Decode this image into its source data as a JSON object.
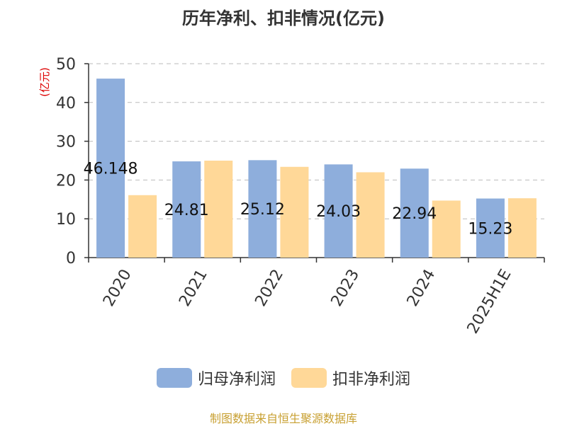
{
  "chart_data": {
    "type": "bar",
    "title": "历年净利、扣非情况(亿元)",
    "ylabel": "(亿元)",
    "categories": [
      "2020",
      "2021",
      "2022",
      "2023",
      "2024",
      "2025H1E"
    ],
    "ylim": [
      0,
      50
    ],
    "yticks": [
      0,
      10,
      20,
      30,
      40,
      50
    ],
    "grid": true,
    "legend_position": "bottom",
    "series": [
      {
        "name": "归母净利润",
        "color": "#8eaedc",
        "values": [
          46.148,
          24.81,
          25.12,
          24.03,
          22.94,
          15.23
        ],
        "labels": [
          "46.148",
          "24.81",
          "25.12",
          "24.03",
          "22.94",
          "15.23"
        ]
      },
      {
        "name": "扣非净利润",
        "color": "#ffd898",
        "values": [
          16.1,
          25.0,
          23.4,
          22.0,
          14.7,
          15.3
        ]
      }
    ]
  },
  "source": "制图数据来自恒生聚源数据库"
}
